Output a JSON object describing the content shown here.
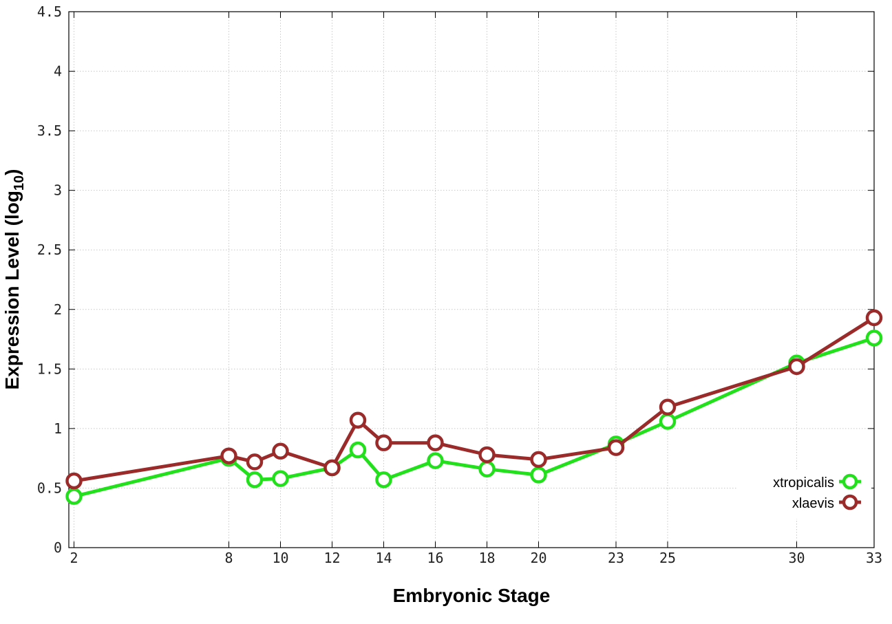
{
  "chart_data": {
    "type": "line",
    "xlabel": "Embryonic Stage",
    "ylabel": "Expression Level (log",
    "ylabel_subscript": "10",
    "ylabel_close": ")",
    "xlim": [
      1.8,
      33
    ],
    "ylim": [
      0,
      4.5
    ],
    "x_ticks": [
      2,
      8,
      10,
      12,
      14,
      16,
      18,
      20,
      23,
      25,
      30,
      33
    ],
    "y_ticks": [
      0,
      0.5,
      1,
      1.5,
      2,
      2.5,
      3,
      3.5,
      4,
      4.5
    ],
    "y_tick_labels": [
      "0",
      "0.5",
      "1",
      "1.5",
      "2",
      "2.5",
      "3",
      "3.5",
      "4",
      "4.5"
    ],
    "grid": true,
    "legend_position": "bottom-right",
    "x": [
      2,
      8,
      9,
      10,
      12,
      13,
      14,
      16,
      18,
      20,
      23,
      25,
      30,
      33
    ],
    "series": [
      {
        "name": "xtropicalis",
        "color": "#22e01b",
        "values": [
          0.43,
          0.75,
          0.57,
          0.58,
          0.67,
          0.82,
          0.57,
          0.73,
          0.66,
          0.61,
          0.87,
          1.06,
          1.55,
          1.76
        ]
      },
      {
        "name": "xlaevis",
        "color": "#9b2b2b",
        "values": [
          0.56,
          0.77,
          0.72,
          0.81,
          0.67,
          1.07,
          0.88,
          0.88,
          0.78,
          0.74,
          0.84,
          1.18,
          1.52,
          1.93
        ]
      }
    ]
  }
}
